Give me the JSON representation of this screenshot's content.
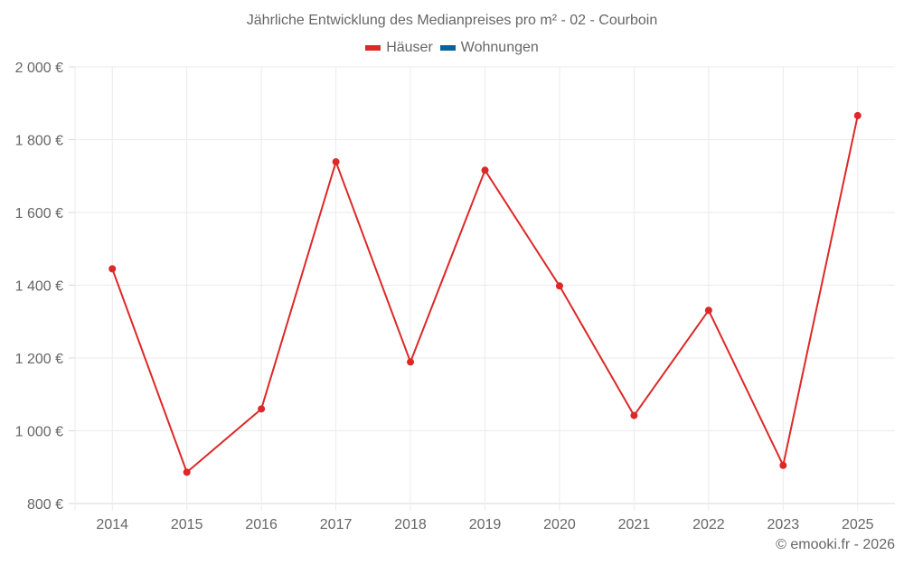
{
  "chart": {
    "title": "Jährliche Entwicklung des Medianpreises pro m² - 02 - Courboin",
    "credit": "© emooki.fr - 2026",
    "legend": [
      {
        "label": "Häuser",
        "color": "#dd2828"
      },
      {
        "label": "Wohnungen",
        "color": "#05649e"
      }
    ]
  },
  "chart_data": {
    "type": "line",
    "title": "Jährliche Entwicklung des Medianpreises pro m² - 02 - Courboin",
    "xlabel": "",
    "ylabel": "",
    "categories": [
      "2014",
      "2015",
      "2016",
      "2017",
      "2018",
      "2019",
      "2020",
      "2021",
      "2022",
      "2023",
      "2025"
    ],
    "series": [
      {
        "name": "Häuser",
        "color": "#dd2828",
        "values": [
          1445,
          886,
          1060,
          1739,
          1189,
          1716,
          1398,
          1042,
          1331,
          905,
          1866
        ]
      },
      {
        "name": "Wohnungen",
        "color": "#05649e",
        "values": []
      }
    ],
    "ylim": [
      800,
      2000
    ],
    "yticks": [
      800,
      1000,
      1200,
      1400,
      1600,
      1800,
      2000
    ],
    "ytick_labels": [
      "800 €",
      "1 000 €",
      "1 200 €",
      "1 400 €",
      "1 600 €",
      "1 800 €",
      "2 000 €"
    ],
    "grid": true,
    "legend_position": "top"
  }
}
